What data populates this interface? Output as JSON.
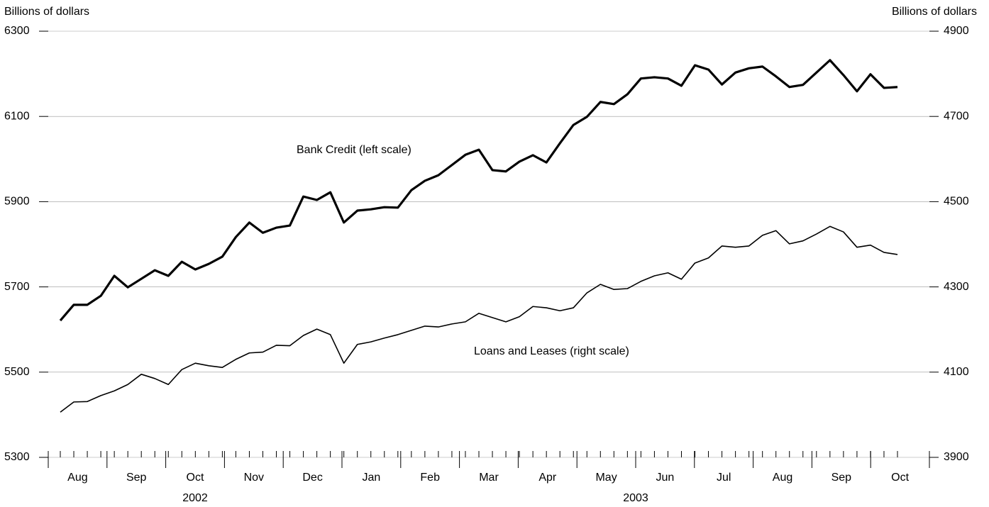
{
  "chart_data": {
    "type": "line",
    "ylabel": "Billions of dollars",
    "y2label": "Billions of dollars",
    "categories": [
      null,
      null,
      null,
      null,
      null,
      null,
      null,
      null,
      null,
      null,
      null,
      null,
      null,
      null,
      null,
      null,
      null,
      null,
      null,
      null,
      null,
      null,
      null,
      null,
      null,
      null,
      null,
      null,
      null,
      null,
      null,
      null,
      null,
      null,
      null,
      null,
      null,
      null,
      null,
      null,
      null,
      null,
      null,
      null,
      null,
      null,
      null,
      null,
      null,
      null,
      null,
      null,
      null,
      null,
      null,
      null,
      null,
      null,
      null,
      null,
      null,
      null,
      null
    ],
    "x_groups": [
      {
        "label": "2002",
        "months": [
          "Aug",
          "Sep",
          "Oct",
          "Nov",
          "Dec"
        ]
      },
      {
        "label": "2003",
        "months": [
          "Jan",
          "Feb",
          "Mar",
          "Apr",
          "May",
          "Jun",
          "Jul",
          "Aug",
          "Sep",
          "Oct"
        ]
      }
    ],
    "series": [
      {
        "name": "Bank Credit (left scale)",
        "color": "#000000",
        "axis": "y",
        "values": [
          5621,
          5658,
          5658,
          5679,
          5726,
          5699,
          5719,
          5739,
          5726,
          5759,
          5741,
          5754,
          5771,
          5817,
          5851,
          5827,
          5839,
          5844,
          5912,
          5904,
          5922,
          5851,
          5879,
          5882,
          5887,
          5886,
          5927,
          5949,
          5962,
          5986,
          6010,
          6022,
          5974,
          5971,
          5994,
          6009,
          5992,
          6037,
          6080,
          6099,
          6134,
          6129,
          6152,
          6189,
          6192,
          6189,
          6172,
          6220,
          6210,
          6175,
          6203,
          6213,
          6217,
          6194,
          6169,
          6174,
          6203,
          6232,
          6197,
          6159,
          6199,
          6167,
          6169
        ]
      },
      {
        "name": "Loans and Leases (right scale)",
        "color": "#000000",
        "axis": "y2",
        "values": [
          4006,
          4030,
          4031,
          4045,
          4056,
          4071,
          4095,
          4085,
          4071,
          4106,
          4121,
          4115,
          4111,
          4130,
          4145,
          4147,
          4163,
          4162,
          4186,
          4201,
          4188,
          4121,
          4165,
          4171,
          4180,
          4188,
          4198,
          4208,
          4206,
          4213,
          4218,
          4238,
          4228,
          4218,
          4230,
          4254,
          4251,
          4244,
          4251,
          4286,
          4306,
          4294,
          4296,
          4313,
          4326,
          4333,
          4318,
          4356,
          4368,
          4396,
          4393,
          4396,
          4421,
          4432,
          4401,
          4408,
          4424,
          4442,
          4429,
          4393,
          4398,
          4381,
          4376
        ]
      }
    ],
    "ylim": [
      5300,
      6300
    ],
    "yticks": [
      5300,
      5500,
      5700,
      5900,
      6100,
      6300
    ],
    "y2lim": [
      3900,
      4900
    ],
    "y2ticks": [
      3900,
      4100,
      4300,
      4500,
      4700,
      4900
    ],
    "grid": true
  }
}
